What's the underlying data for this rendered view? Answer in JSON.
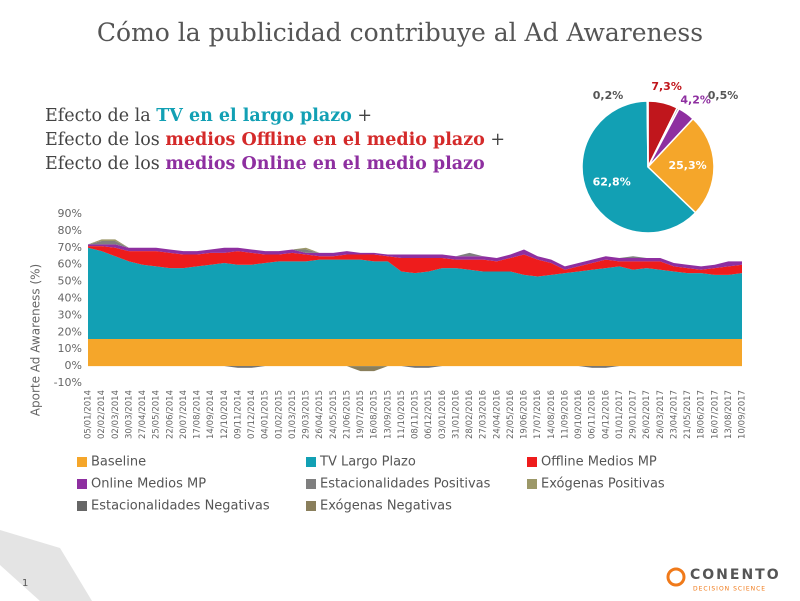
{
  "title": "Cómo la publicidad contribuye al Ad Awareness",
  "subtitle_lines": [
    [
      {
        "text": "Efecto de la ",
        "color": "#444444",
        "bold": false
      },
      {
        "text": "TV en el largo plazo",
        "color": "#12a0b4",
        "bold": true
      },
      {
        "text": " +",
        "color": "#444444",
        "bold": false
      }
    ],
    [
      {
        "text": "Efecto de los ",
        "color": "#444444",
        "bold": false
      },
      {
        "text": "medios Offline en el medio plazo",
        "color": "#d42a2a",
        "bold": true
      },
      {
        "text": " +",
        "color": "#444444",
        "bold": false
      }
    ],
    [
      {
        "text": "Efecto de los ",
        "color": "#444444",
        "bold": false
      },
      {
        "text": "medios Online en el medio plazo",
        "color": "#8e2fa0",
        "bold": true
      }
    ]
  ],
  "chart_data": [
    {
      "type": "stacked_area",
      "y_label": "Aporte Ad Awareness (%)",
      "ylim": [
        -10,
        90
      ],
      "yticks": [
        {
          "value": -10,
          "label": "-10%"
        },
        {
          "value": 0,
          "label": "0%"
        },
        {
          "value": 10,
          "label": "10%"
        },
        {
          "value": 20,
          "label": "20%"
        },
        {
          "value": 30,
          "label": "30%"
        },
        {
          "value": 40,
          "label": "40%"
        },
        {
          "value": 50,
          "label": "50%"
        },
        {
          "value": 60,
          "label": "60%"
        },
        {
          "value": 70,
          "label": "70%"
        },
        {
          "value": 80,
          "label": "80%"
        },
        {
          "value": 90,
          "label": "90%"
        }
      ],
      "categories": [
        "05/01/2014",
        "02/02/2014",
        "02/03/2014",
        "30/03/2014",
        "27/04/2014",
        "25/05/2014",
        "22/06/2014",
        "20/07/2014",
        "17/08/2014",
        "14/09/2014",
        "12/10/2014",
        "09/11/2014",
        "07/12/2014",
        "04/01/2015",
        "01/02/2015",
        "01/03/2015",
        "29/03/2015",
        "26/04/2015",
        "24/05/2015",
        "21/06/2015",
        "19/07/2015",
        "16/08/2015",
        "13/09/2015",
        "11/10/2015",
        "08/11/2015",
        "06/12/2015",
        "03/01/2016",
        "31/01/2016",
        "28/02/2016",
        "27/03/2016",
        "24/04/2016",
        "22/05/2016",
        "19/06/2016",
        "17/07/2016",
        "14/08/2016",
        "11/09/2016",
        "09/10/2016",
        "06/11/2016",
        "04/12/2016",
        "01/01/2017",
        "29/01/2017",
        "26/02/2017",
        "26/03/2017",
        "23/04/2017",
        "21/05/2017",
        "18/06/2017",
        "16/07/2017",
        "13/08/2017",
        "10/09/2017"
      ],
      "series": [
        {
          "name": "Baseline",
          "color": "#f5a62a",
          "values": [
            16,
            16,
            16,
            16,
            16,
            16,
            16,
            16,
            16,
            16,
            16,
            16,
            16,
            16,
            16,
            16,
            16,
            16,
            16,
            16,
            16,
            16,
            16,
            16,
            16,
            16,
            16,
            16,
            16,
            16,
            16,
            16,
            16,
            16,
            16,
            16,
            16,
            16,
            16,
            16,
            16,
            16,
            16,
            16,
            16,
            16,
            16,
            16,
            16
          ]
        },
        {
          "name": "TV Largo Plazo",
          "color": "#12a0b4",
          "values": [
            54,
            52,
            49,
            46,
            44,
            43,
            42,
            42,
            43,
            44,
            45,
            44,
            44,
            45,
            46,
            46,
            46,
            47,
            47,
            47,
            47,
            46,
            46,
            40,
            39,
            40,
            42,
            42,
            41,
            40,
            40,
            40,
            38,
            37,
            38,
            39,
            40,
            41,
            42,
            43,
            41,
            42,
            41,
            40,
            39,
            39,
            38,
            38,
            39
          ]
        },
        {
          "name": "Offline Medios MP",
          "color": "#ee1c1c",
          "values": [
            1,
            3,
            5,
            6,
            8,
            9,
            9,
            8,
            7,
            7,
            6,
            8,
            7,
            5,
            4,
            5,
            4,
            2,
            2,
            3,
            3,
            4,
            3,
            8,
            9,
            8,
            6,
            5,
            6,
            7,
            6,
            8,
            12,
            10,
            7,
            2,
            3,
            4,
            5,
            3,
            5,
            4,
            5,
            3,
            3,
            2,
            4,
            5,
            5
          ]
        },
        {
          "name": "Online Medios MP",
          "color": "#8e2fa0",
          "values": [
            1,
            1,
            2,
            2,
            2,
            2,
            2,
            2,
            2,
            2,
            3,
            2,
            2,
            2,
            2,
            2,
            1,
            2,
            2,
            2,
            1,
            1,
            1,
            2,
            2,
            2,
            2,
            2,
            2,
            2,
            2,
            2,
            3,
            2,
            2,
            2,
            2,
            2,
            2,
            2,
            2,
            2,
            2,
            2,
            2,
            2,
            2,
            3,
            2
          ]
        },
        {
          "name": "Estacionalidades Positivas",
          "color": "#7f7f7f",
          "values": [
            0,
            2,
            2,
            0,
            0,
            0,
            0,
            0,
            0,
            0,
            0,
            0,
            0,
            0,
            0,
            0,
            2,
            0,
            0,
            0,
            0,
            0,
            0,
            0,
            0,
            0,
            0,
            0,
            2,
            0,
            0,
            0,
            0,
            0,
            0,
            0,
            0,
            0,
            0,
            0,
            1,
            0,
            0,
            0,
            0,
            0,
            0,
            0,
            0
          ]
        },
        {
          "name": "Exógenas Positivas",
          "color": "#9c9868",
          "values": [
            0,
            1,
            1,
            0,
            0,
            0,
            0,
            0,
            0,
            0,
            0,
            0,
            0,
            0,
            0,
            0,
            1,
            0,
            0,
            0,
            0,
            0,
            0,
            0,
            0,
            0,
            0,
            0,
            0,
            0,
            0,
            0,
            0,
            0,
            0,
            0,
            0,
            0,
            0,
            0,
            0,
            0,
            0,
            0,
            0,
            0,
            0,
            0,
            0
          ]
        },
        {
          "name": "Estacionalidades Negativas",
          "color": "#666666",
          "values": [
            0,
            0,
            0,
            0,
            0,
            0,
            0,
            0,
            0,
            0,
            0,
            -1,
            -1,
            0,
            0,
            0,
            0,
            0,
            0,
            0,
            0,
            0,
            0,
            0,
            -1,
            -1,
            0,
            0,
            0,
            0,
            0,
            0,
            0,
            0,
            0,
            0,
            0,
            -1,
            -1,
            0,
            0,
            0,
            0,
            0,
            0,
            0,
            0,
            0,
            0
          ]
        },
        {
          "name": "Exógenas Negativas",
          "color": "#8a7f5c",
          "values": [
            0,
            0,
            0,
            0,
            0,
            0,
            0,
            0,
            0,
            0,
            0,
            0,
            0,
            0,
            0,
            0,
            0,
            0,
            0,
            0,
            -3,
            -3,
            0,
            0,
            0,
            0,
            0,
            0,
            0,
            0,
            0,
            0,
            0,
            0,
            0,
            0,
            0,
            0,
            0,
            0,
            0,
            0,
            0,
            0,
            0,
            0,
            0,
            0,
            0
          ]
        }
      ]
    },
    {
      "type": "pie",
      "values": [
        7.3,
        0.5,
        4.2,
        25.3,
        62.8,
        0.2
      ],
      "value_labels": [
        "7,3%",
        "0,5%",
        "4,2%",
        "25,3%",
        "62,8%",
        "0,2%"
      ],
      "colors": [
        "#c0161c",
        "#8a8a8a",
        "#8e2fa0",
        "#f5a62a",
        "#12a0b4",
        "#7f7f7f"
      ],
      "label_colors": [
        "#c0161c",
        "#555555",
        "#8e2fa0",
        "#ffffff",
        "#ffffff",
        "#555555"
      ]
    }
  ],
  "footer": {
    "page_number": "1",
    "logo": "CONENTO",
    "logo_tagline": "DECISION SCIENCE"
  }
}
